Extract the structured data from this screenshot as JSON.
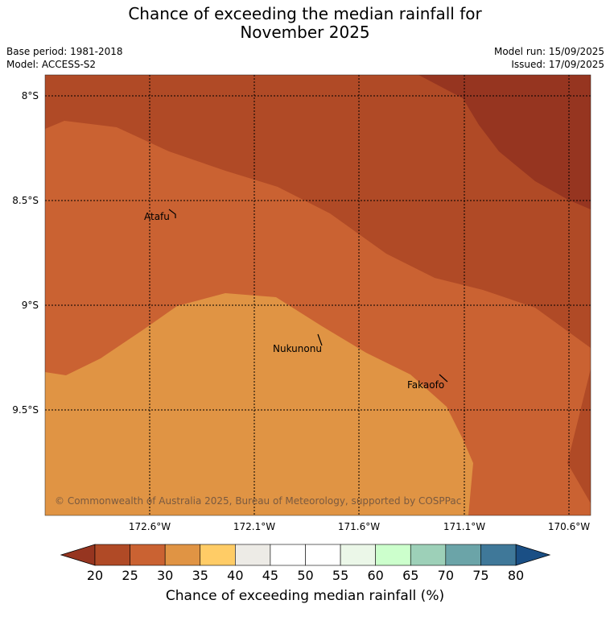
{
  "title": {
    "line1": "Chance of exceeding the median rainfall for",
    "line2": "November 2025"
  },
  "meta": {
    "base_period": "Base period: 1981-2018",
    "model": "Model: ACCESS-S2",
    "model_run": "Model run: 15/09/2025",
    "issued": "Issued: 17/09/2025"
  },
  "map": {
    "lat_labels": [
      "8°S",
      "8.5°S",
      "9°S",
      "9.5°S"
    ],
    "lon_labels": [
      "172.6°W",
      "172.1°W",
      "171.6°W",
      "171.1°W",
      "170.6°W"
    ],
    "places": [
      "Atafu",
      "Nukunonu",
      "Fakaofo"
    ],
    "copyright": "© Commonwealth of Australia 2025, Bureau of Meteorology, supported by COSPPac"
  },
  "colorbar": {
    "ticks": [
      "20",
      "25",
      "30",
      "35",
      "40",
      "45",
      "50",
      "55",
      "60",
      "65",
      "70",
      "75",
      "80"
    ],
    "under_color": "#963520",
    "over_color": "#1a4f85",
    "colors": [
      "#b04a26",
      "#ca6232",
      "#e09444",
      "#ffcc66",
      "#edebe6",
      "#ffffff",
      "#ffffff",
      "#ebf7e8",
      "#ccffcc",
      "#9dd0b8",
      "#6ba4a8",
      "#3f7899"
    ],
    "label": "Chance of exceeding median rainfall (%)"
  }
}
